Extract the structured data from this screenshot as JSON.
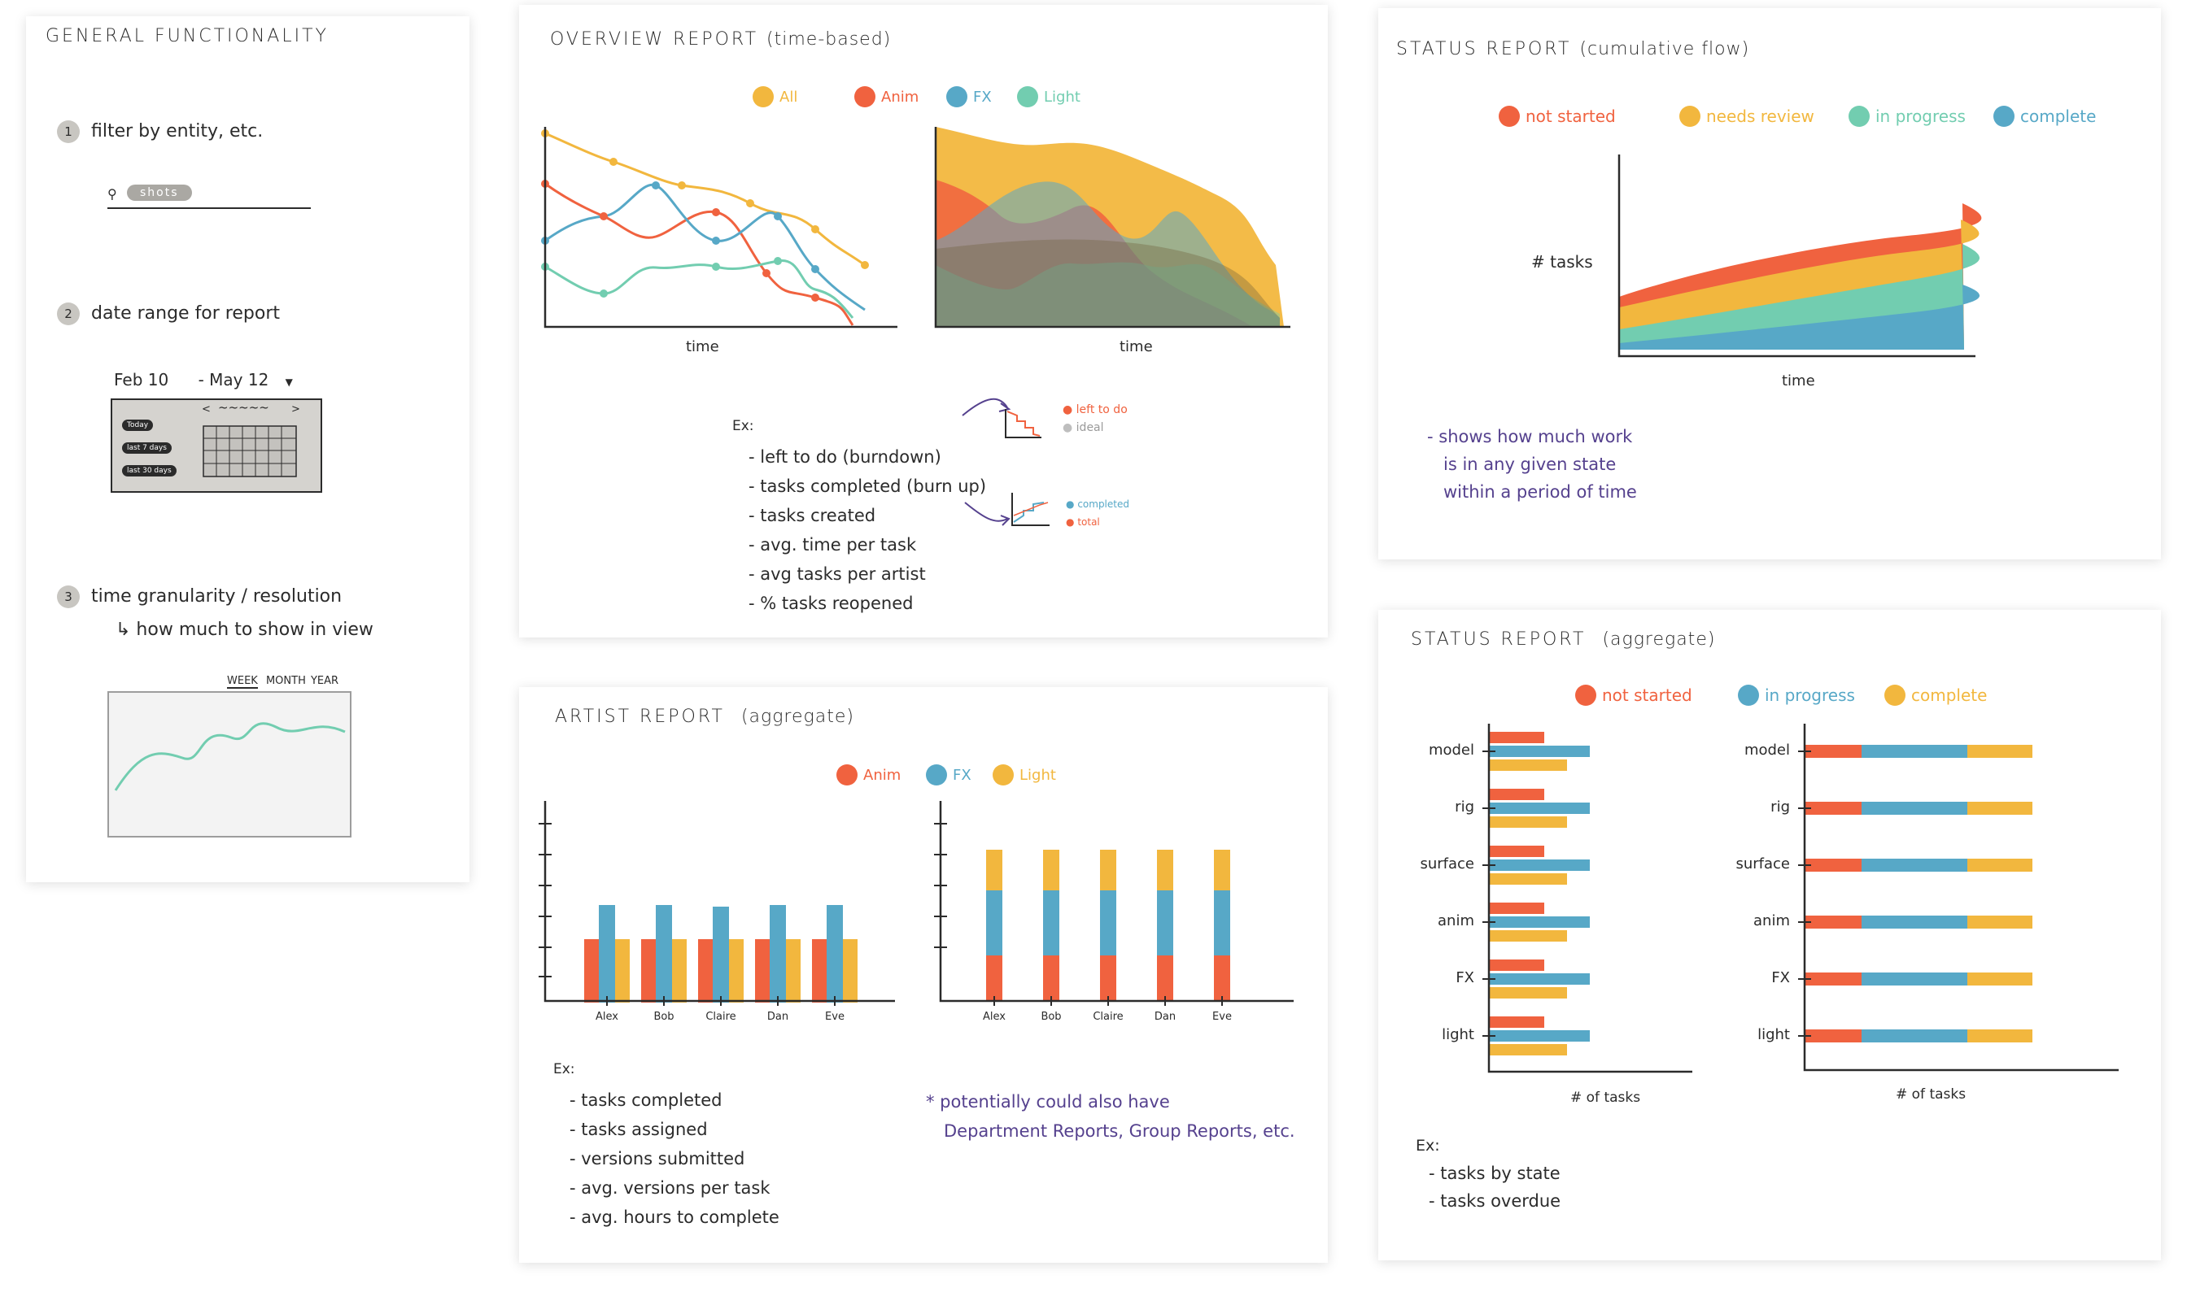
{
  "colors": {
    "red": "#f0623f",
    "yellow": "#f2b73e",
    "blue": "#57a8c7",
    "teal": "#72cdb0",
    "gray": "#bebebe",
    "purple": "#55418e"
  },
  "general": {
    "title": "GENERAL FUNCTIONALITY",
    "step1_num": "1",
    "step1": "filter by entity, etc.",
    "search_pill": "shots",
    "step2_num": "2",
    "step2": "date range for report",
    "date_from": "Feb 10",
    "date_to": "- May 12",
    "presets": [
      "Today",
      "last 7 days",
      "last 30 days"
    ],
    "step3_num": "3",
    "step3": "time granularity / resolution",
    "step3b": "↳ how much to show in view",
    "gran_options": [
      "WEEK",
      "MONTH",
      "YEAR"
    ]
  },
  "overview": {
    "title": "OVERVIEW REPORT",
    "subtitle": "(time-based)",
    "legend": [
      {
        "label": "All",
        "color": "#f2b73e"
      },
      {
        "label": "Anim",
        "color": "#f0623f"
      },
      {
        "label": "FX",
        "color": "#57a8c7"
      },
      {
        "label": "Light",
        "color": "#72cdb0"
      }
    ],
    "xlabel_left": "time",
    "xlabel_right": "time",
    "ex_label": "Ex:",
    "examples": [
      "- left to do (burndown)",
      "- tasks completed (burn up)",
      "- tasks created",
      "- avg. time per task",
      "- avg tasks per artist",
      "- % tasks reopened"
    ],
    "burndown_legend": [
      "left to do",
      "ideal"
    ],
    "burnup_legend": [
      "completed",
      "total"
    ]
  },
  "artist": {
    "title": "ARTIST REPORT",
    "subtitle": "(aggregate)",
    "legend": [
      {
        "label": "Anim",
        "color": "#f0623f"
      },
      {
        "label": "FX",
        "color": "#57a8c7"
      },
      {
        "label": "Light",
        "color": "#f2b73e"
      }
    ],
    "names": [
      "Alex",
      "Bob",
      "Claire",
      "Dan",
      "Eve"
    ],
    "ex_label": "Ex:",
    "examples": [
      "- tasks completed",
      "- tasks assigned",
      "- versions submitted",
      "- avg. versions per task",
      "- avg. hours to complete"
    ],
    "note_line1": "* potentially could also have",
    "note_line2": "Department Reports, Group Reports, etc."
  },
  "cumulative": {
    "title": "STATUS REPORT",
    "subtitle": "(cumulative flow)",
    "legend": [
      {
        "label": "not started",
        "color": "#f0623f"
      },
      {
        "label": "needs review",
        "color": "#f2b73e"
      },
      {
        "label": "in progress",
        "color": "#72cdb0"
      },
      {
        "label": "complete",
        "color": "#57a8c7"
      }
    ],
    "ylabel": "# tasks",
    "xlabel": "time",
    "note": [
      "- shows how much work",
      "is in any given state",
      "within a period of time"
    ]
  },
  "aggregate": {
    "title": "STATUS REPORT",
    "subtitle": "(aggregate)",
    "legend": [
      {
        "label": "not started",
        "color": "#f0623f"
      },
      {
        "label": "in progress",
        "color": "#57a8c7"
      },
      {
        "label": "complete",
        "color": "#f2b73e"
      }
    ],
    "categories": [
      "model",
      "rig",
      "surface",
      "anim",
      "FX",
      "light"
    ],
    "xlabel_left": "# of tasks",
    "xlabel_right": "# of tasks",
    "ex_label": "Ex:",
    "examples": [
      "- tasks by state",
      "- tasks overdue"
    ]
  }
}
